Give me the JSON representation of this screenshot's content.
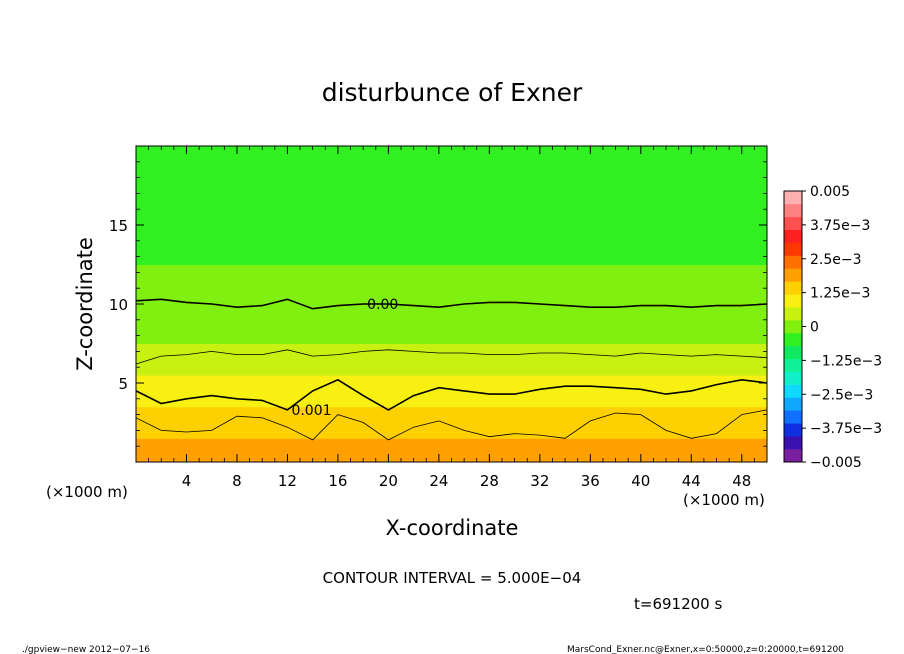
{
  "chart_data": {
    "type": "heatmap",
    "title": "disturbunce of Exner",
    "xlabel": "X-coordinate",
    "ylabel": "Z-coordinate",
    "x_unit_left": "(×1000 m)",
    "x_unit_right": "(×1000 m)",
    "xlim": [
      0,
      50
    ],
    "ylim": [
      0,
      20
    ],
    "x_ticks": [
      4,
      8,
      12,
      16,
      20,
      24,
      28,
      32,
      36,
      40,
      44,
      48
    ],
    "y_ticks": [
      5,
      10,
      15
    ],
    "colorbar": {
      "min": -0.005,
      "max": 0.005,
      "levels": [
        {
          "value": -0.005,
          "label": "−0.005"
        },
        {
          "value": -0.00375,
          "label": "−3.75e−3"
        },
        {
          "value": -0.0025,
          "label": "−2.5e−3"
        },
        {
          "value": -0.00125,
          "label": "−1.25e−3"
        },
        {
          "value": 0,
          "label": "0"
        },
        {
          "value": 0.00125,
          "label": "1.25e−3"
        },
        {
          "value": 0.0025,
          "label": "2.5e−3"
        },
        {
          "value": 0.00375,
          "label": "3.75e−3"
        },
        {
          "value": 0.005,
          "label": "0.005"
        }
      ],
      "colors": [
        "#7a1fa0",
        "#3a10b0",
        "#1030e0",
        "#1070ff",
        "#10a8ff",
        "#10d8ff",
        "#10f0c8",
        "#10f098",
        "#10e860",
        "#30f020",
        "#80f010",
        "#c8f010",
        "#f8f010",
        "#ffd000",
        "#ffa000",
        "#ff7000",
        "#ff3800",
        "#ff2020",
        "#ff5050",
        "#ff8080",
        "#ffb0b0"
      ]
    },
    "contours": [
      {
        "value": 0.0,
        "label": "0.00",
        "z_profile": [
          10.2,
          10.3,
          10.1,
          10.0,
          9.8,
          9.9,
          10.3,
          9.7,
          9.9,
          10.0,
          10.0,
          9.9,
          9.8,
          10.0,
          10.1,
          10.1,
          10.0,
          9.9,
          9.8,
          9.8,
          9.9,
          9.9,
          9.8,
          9.9,
          9.9,
          10.0
        ]
      },
      {
        "value": 0.0005,
        "label": "",
        "z_profile": [
          6.2,
          6.7,
          6.8,
          7.0,
          6.8,
          6.8,
          7.1,
          6.7,
          6.8,
          7.0,
          7.1,
          7.0,
          6.9,
          6.9,
          6.8,
          6.8,
          6.9,
          6.9,
          6.8,
          6.7,
          6.9,
          6.8,
          6.7,
          6.8,
          6.7,
          6.6
        ]
      },
      {
        "value": 0.001,
        "label": "0.001",
        "z_profile": [
          4.5,
          3.7,
          4.0,
          4.2,
          4.0,
          3.9,
          3.3,
          4.5,
          5.2,
          4.2,
          3.3,
          4.2,
          4.7,
          4.5,
          4.3,
          4.3,
          4.6,
          4.8,
          4.8,
          4.7,
          4.6,
          4.3,
          4.5,
          4.9,
          5.2,
          5.0
        ]
      },
      {
        "value": 0.0015,
        "label": "",
        "z_profile": [
          2.8,
          2.0,
          1.9,
          2.0,
          2.9,
          2.8,
          2.2,
          1.4,
          3.0,
          2.5,
          1.4,
          2.2,
          2.6,
          2.0,
          1.6,
          1.8,
          1.7,
          1.5,
          2.6,
          3.1,
          3.0,
          2.0,
          1.5,
          1.8,
          3.0,
          3.3
        ]
      }
    ],
    "values_z": [
      0,
      1,
      2,
      3,
      4,
      5,
      6,
      7,
      8,
      9,
      10,
      11,
      12,
      13,
      14,
      15,
      16,
      17,
      18,
      19,
      20
    ],
    "values": [
      0.002,
      0.0018,
      0.0015,
      0.0013,
      0.001,
      0.0008,
      0.0006,
      0.0004,
      0.0002,
      0.0001,
      0.0,
      -0.0001,
      -0.0002,
      -0.0003,
      -0.0004,
      -0.0005,
      -0.0005,
      -0.0004,
      -0.0004,
      -0.0003,
      -0.0003
    ]
  },
  "annotations": {
    "contour_interval": "CONTOUR INTERVAL = 5.000E−04",
    "time": "t=691200 s",
    "footer_left": "./gpview−new   2012−07−16",
    "footer_right": "MarsCond_Exner.nc@Exner,x=0:50000,z=0:20000,t=691200"
  }
}
